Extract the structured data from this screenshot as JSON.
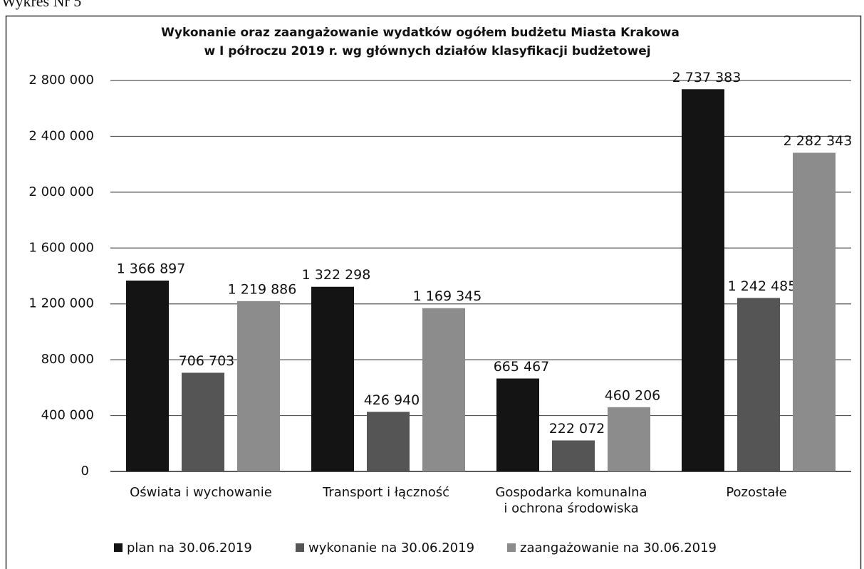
{
  "caption": "Wykres Nr 5",
  "chart_data": {
    "type": "bar",
    "title": [
      "Wykonanie oraz zaangażowanie wydatków ogółem budżetu Miasta Krakowa",
      "w I półroczu 2019 r. wg głównych działów klasyfikacji budżetowej"
    ],
    "categories": [
      "Oświata i wychowanie",
      "Transport i łączność",
      "Gospodarka komunalna\ni ochrona środowiska",
      "Pozostałe"
    ],
    "series": [
      {
        "name": "plan na 30.06.2019",
        "color": "#141414",
        "values": [
          1366897,
          1322298,
          665467,
          2737383
        ],
        "value_labels": [
          "1 366 897",
          "1 322 298",
          "665 467",
          "2 737 383"
        ]
      },
      {
        "name": "wykonanie na 30.06.2019",
        "color": "#555555",
        "values": [
          706703,
          426940,
          222072,
          1242485
        ],
        "value_labels": [
          "706 703",
          "426 940",
          "222 072",
          "1 242 485"
        ]
      },
      {
        "name": "zaangażowanie na 30.06.2019",
        "color": "#8c8c8c",
        "values": [
          1219886,
          1169345,
          460206,
          2282343
        ],
        "value_labels": [
          "1 219 886",
          "1 169 345",
          "460 206",
          "2 282 343"
        ]
      }
    ],
    "ylim": [
      0,
      2800000
    ],
    "yticks": [
      0,
      {
        "value": 400000,
        "label": "400 000"
      },
      {
        "value": 800000,
        "label": "800 000"
      },
      {
        "value": 1200000,
        "label": "1 200 000"
      },
      {
        "value": 1600000,
        "label": "1 600 000"
      },
      {
        "value": 2000000,
        "label": "2 000 000"
      },
      {
        "value": 2400000,
        "label": "2 400 000"
      },
      {
        "value": 2800000,
        "label": "2 800 000"
      }
    ],
    "grid": true,
    "legend": "bottom"
  }
}
